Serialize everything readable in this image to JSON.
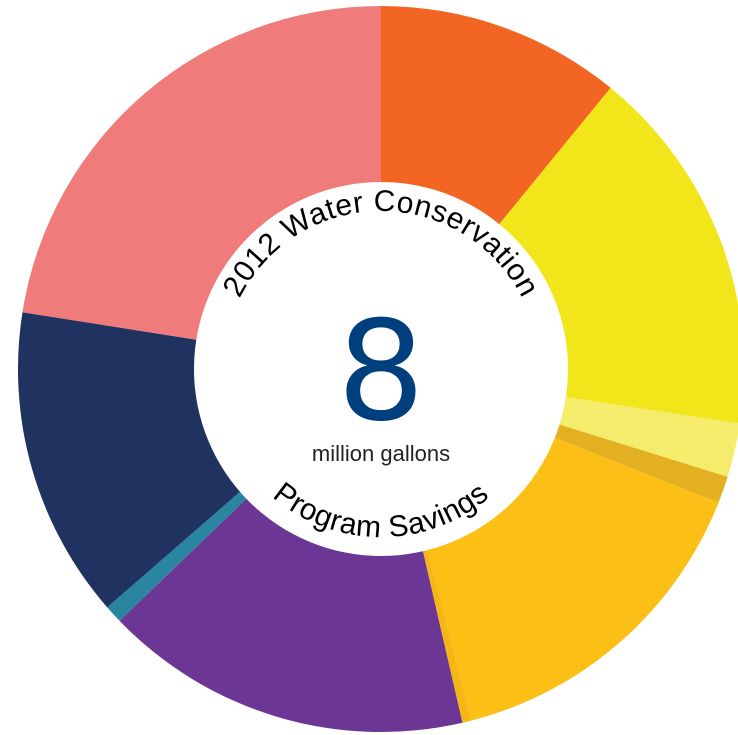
{
  "chart_data": {
    "type": "donut",
    "title_top": "2012 Water Conservation",
    "title_bottom": "Program Savings",
    "center_value": "8",
    "center_unit": "million gallons",
    "center_value_color": "#003f7d",
    "slices": [
      {
        "value": 10.9,
        "color": "#f26522"
      },
      {
        "value": 16.5,
        "color": "#f1e619"
      },
      {
        "value": 2.4,
        "color": "#f5ec6b"
      },
      {
        "value": 1.2,
        "color": "#e2b020"
      },
      {
        "value": 15.0,
        "color": "#fbbf15"
      },
      {
        "value": 0.4,
        "color": "#f6b616"
      },
      {
        "value": 16.4,
        "color": "#6c3794"
      },
      {
        "value": 0.8,
        "color": "#2a85a0"
      },
      {
        "value": 13.9,
        "color": "#1f3260"
      },
      {
        "value": 22.5,
        "color": "#f07b7b"
      }
    ]
  }
}
